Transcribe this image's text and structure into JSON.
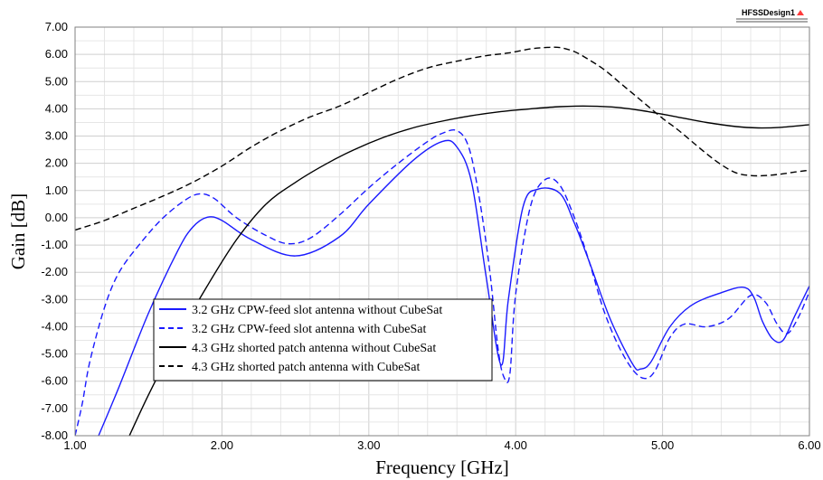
{
  "design_label": "HFSSDesign1",
  "chart_data": {
    "type": "line",
    "xlabel": "Frequency [GHz]",
    "ylabel": "Gain [dB]",
    "xlim": [
      1.0,
      6.0
    ],
    "ylim": [
      -8.0,
      7.0
    ],
    "xticks": [
      "1.00",
      "2.00",
      "3.00",
      "4.00",
      "5.00",
      "6.00"
    ],
    "yticks": [
      "7.00",
      "6.00",
      "5.00",
      "4.00",
      "3.00",
      "2.00",
      "1.00",
      "0.00",
      "-1.00",
      "-2.00",
      "-3.00",
      "-4.00",
      "-5.00",
      "-6.00",
      "-7.00",
      "-8.00"
    ],
    "grid": true,
    "legend_position": "bottom-left",
    "series": [
      {
        "name": "3.2 GHz CPW-feed slot antenna without CubeSat",
        "color": "#1a1aff",
        "dash": "solid",
        "x": [
          1.16,
          1.3,
          1.5,
          1.7,
          1.8,
          1.9,
          2.0,
          2.2,
          2.5,
          2.8,
          3.0,
          3.3,
          3.5,
          3.6,
          3.7,
          3.8,
          3.9,
          3.95,
          4.05,
          4.15,
          4.3,
          4.4,
          4.5,
          4.65,
          4.8,
          4.85,
          4.92,
          5.05,
          5.2,
          5.4,
          5.55,
          5.62,
          5.68,
          5.75,
          5.82,
          5.9,
          6.0
        ],
        "y": [
          -8.0,
          -6.2,
          -3.5,
          -1.2,
          -0.35,
          0.02,
          -0.1,
          -0.8,
          -1.4,
          -0.7,
          0.5,
          2.1,
          2.8,
          2.6,
          1.3,
          -2.2,
          -5.4,
          -3.0,
          0.4,
          1.05,
          0.9,
          -0.2,
          -1.6,
          -3.8,
          -5.4,
          -5.55,
          -5.3,
          -4.0,
          -3.2,
          -2.75,
          -2.55,
          -2.9,
          -3.8,
          -4.45,
          -4.5,
          -3.6,
          -2.5
        ]
      },
      {
        "name": "3.2 GHz CPW-feed slot antenna with CubeSat",
        "color": "#1a1aff",
        "dash": "dashed",
        "x": [
          1.0,
          1.05,
          1.1,
          1.2,
          1.3,
          1.45,
          1.6,
          1.75,
          1.85,
          1.95,
          2.1,
          2.3,
          2.45,
          2.6,
          2.8,
          3.0,
          3.2,
          3.4,
          3.5,
          3.6,
          3.68,
          3.75,
          3.82,
          3.88,
          3.92,
          3.96,
          4.0,
          4.1,
          4.2,
          4.3,
          4.4,
          4.5,
          4.6,
          4.7,
          4.8,
          4.88,
          4.95,
          5.05,
          5.15,
          5.3,
          5.45,
          5.6,
          5.7,
          5.78,
          5.85,
          5.93,
          6.0
        ],
        "y": [
          -8.0,
          -6.8,
          -5.3,
          -3.3,
          -2.0,
          -0.9,
          0.0,
          0.65,
          0.88,
          0.7,
          0.0,
          -0.65,
          -0.95,
          -0.75,
          0.1,
          1.1,
          2.0,
          2.8,
          3.1,
          3.2,
          2.6,
          0.8,
          -1.8,
          -4.8,
          -5.85,
          -5.75,
          -2.8,
          0.4,
          1.4,
          1.2,
          0.0,
          -1.6,
          -3.4,
          -4.7,
          -5.6,
          -5.9,
          -5.6,
          -4.4,
          -3.9,
          -4.0,
          -3.7,
          -2.85,
          -3.1,
          -3.9,
          -4.25,
          -3.6,
          -2.7
        ]
      },
      {
        "name": "4.3 GHz shorted patch antenna without CubeSat",
        "color": "#000000",
        "dash": "solid",
        "x": [
          1.37,
          1.5,
          1.7,
          1.9,
          2.1,
          2.3,
          2.5,
          2.7,
          2.9,
          3.1,
          3.3,
          3.5,
          3.7,
          3.9,
          4.1,
          4.3,
          4.5,
          4.7,
          4.9,
          5.1,
          5.3,
          5.5,
          5.65,
          5.8,
          6.0
        ],
        "y": [
          -8.0,
          -6.5,
          -4.4,
          -2.5,
          -0.8,
          0.5,
          1.3,
          1.95,
          2.5,
          2.95,
          3.3,
          3.55,
          3.75,
          3.9,
          4.0,
          4.08,
          4.1,
          4.05,
          3.9,
          3.7,
          3.5,
          3.35,
          3.3,
          3.32,
          3.42
        ]
      },
      {
        "name": "4.3 GHz shorted patch antenna with CubeSat",
        "color": "#000000",
        "dash": "dashed",
        "x": [
          1.0,
          1.2,
          1.4,
          1.6,
          1.8,
          2.0,
          2.2,
          2.4,
          2.6,
          2.8,
          3.0,
          3.2,
          3.4,
          3.6,
          3.8,
          3.95,
          4.1,
          4.2,
          4.3,
          4.4,
          4.5,
          4.6,
          4.7,
          4.8,
          4.9,
          5.0,
          5.1,
          5.2,
          5.3,
          5.4,
          5.5,
          5.6,
          5.7,
          5.8,
          5.9,
          6.0
        ],
        "y": [
          -0.45,
          -0.1,
          0.35,
          0.8,
          1.3,
          1.9,
          2.6,
          3.2,
          3.7,
          4.1,
          4.6,
          5.1,
          5.5,
          5.75,
          5.95,
          6.05,
          6.2,
          6.25,
          6.25,
          6.1,
          5.8,
          5.45,
          5.0,
          4.55,
          4.1,
          3.65,
          3.25,
          2.8,
          2.35,
          1.95,
          1.65,
          1.55,
          1.55,
          1.6,
          1.68,
          1.75
        ]
      }
    ]
  }
}
